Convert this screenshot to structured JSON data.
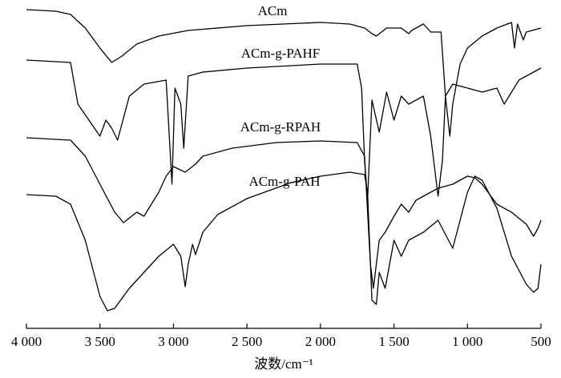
{
  "chart_data": {
    "type": "line",
    "xlabel": "波数/cm⁻¹",
    "xlim": [
      4000,
      500
    ],
    "xticks": [
      {
        "value": 4000,
        "label": "4 000"
      },
      {
        "value": 3500,
        "label": "3 500"
      },
      {
        "value": 3000,
        "label": "3 000"
      },
      {
        "value": 2500,
        "label": "2 500"
      },
      {
        "value": 2000,
        "label": "2 000"
      },
      {
        "value": 1500,
        "label": "1 500"
      },
      {
        "value": 1000,
        "label": "1 000"
      },
      500
    ],
    "ylim": [
      0,
      410
    ],
    "series": [
      {
        "name": "ACm",
        "color": "#000000",
        "x": [
          4000,
          3800,
          3700,
          3600,
          3500,
          3420,
          3350,
          3250,
          3100,
          2900,
          2500,
          2000,
          1800,
          1700,
          1650,
          1620,
          1550,
          1450,
          1400,
          1380,
          1300,
          1250,
          1180,
          1150,
          1120,
          1100,
          1050,
          1000,
          900,
          800,
          700,
          680,
          660,
          620,
          600,
          500
        ],
        "values": [
          398,
          396,
          392,
          375,
          350,
          332,
          340,
          355,
          365,
          372,
          378,
          382,
          380,
          375,
          368,
          365,
          375,
          375,
          368,
          372,
          380,
          370,
          370,
          290,
          240,
          280,
          330,
          350,
          365,
          375,
          382,
          350,
          380,
          360,
          370,
          375
        ]
      },
      {
        "name": "ACm-g-PAHF",
        "color": "#000000",
        "x": [
          4000,
          3700,
          3650,
          3500,
          3460,
          3420,
          3380,
          3300,
          3200,
          3050,
          3010,
          2990,
          2950,
          2930,
          2900,
          2800,
          2500,
          2000,
          1750,
          1720,
          1700,
          1680,
          1650,
          1600,
          1550,
          1500,
          1450,
          1400,
          1300,
          1250,
          1200,
          1170,
          1150,
          1100,
          1000,
          900,
          800,
          750,
          700,
          650,
          600,
          500
        ],
        "values": [
          335,
          332,
          280,
          240,
          260,
          250,
          235,
          290,
          305,
          310,
          180,
          300,
          280,
          225,
          315,
          320,
          325,
          330,
          330,
          300,
          210,
          160,
          285,
          245,
          295,
          260,
          290,
          280,
          290,
          240,
          165,
          210,
          290,
          305,
          300,
          295,
          300,
          280,
          295,
          310,
          315,
          325
        ]
      },
      {
        "name": "ACm-g-RPAH",
        "color": "#000000",
        "x": [
          4000,
          3700,
          3600,
          3500,
          3400,
          3340,
          3250,
          3200,
          3100,
          3050,
          3000,
          2920,
          2850,
          2800,
          2600,
          2300,
          2000,
          1750,
          1700,
          1660,
          1640,
          1600,
          1560,
          1500,
          1450,
          1400,
          1350,
          1300,
          1250,
          1200,
          1100,
          1000,
          950,
          900,
          800,
          700,
          600,
          550,
          520,
          500
        ],
        "values": [
          238,
          235,
          215,
          180,
          145,
          132,
          145,
          140,
          170,
          190,
          202,
          195,
          205,
          215,
          225,
          232,
          234,
          232,
          215,
          80,
          50,
          110,
          120,
          140,
          155,
          145,
          160,
          165,
          170,
          175,
          180,
          190,
          188,
          180,
          155,
          145,
          130,
          115,
          125,
          135
        ]
      },
      {
        "name": "ACm-g-PAH",
        "color": "#000000",
        "x": [
          4000,
          3800,
          3700,
          3600,
          3500,
          3450,
          3400,
          3300,
          3200,
          3100,
          3000,
          2950,
          2920,
          2900,
          2870,
          2850,
          2800,
          2700,
          2500,
          2200,
          2000,
          1800,
          1700,
          1680,
          1650,
          1620,
          1600,
          1560,
          1500,
          1450,
          1400,
          1300,
          1200,
          1100,
          1000,
          950,
          900,
          800,
          700,
          600,
          550,
          520,
          500
        ],
        "values": [
          167,
          165,
          155,
          110,
          40,
          22,
          25,
          50,
          70,
          90,
          105,
          90,
          52,
          80,
          105,
          92,
          120,
          142,
          162,
          182,
          190,
          195,
          192,
          170,
          35,
          30,
          70,
          50,
          110,
          90,
          110,
          120,
          135,
          100,
          170,
          190,
          185,
          150,
          90,
          55,
          45,
          50,
          80
        ]
      }
    ]
  }
}
